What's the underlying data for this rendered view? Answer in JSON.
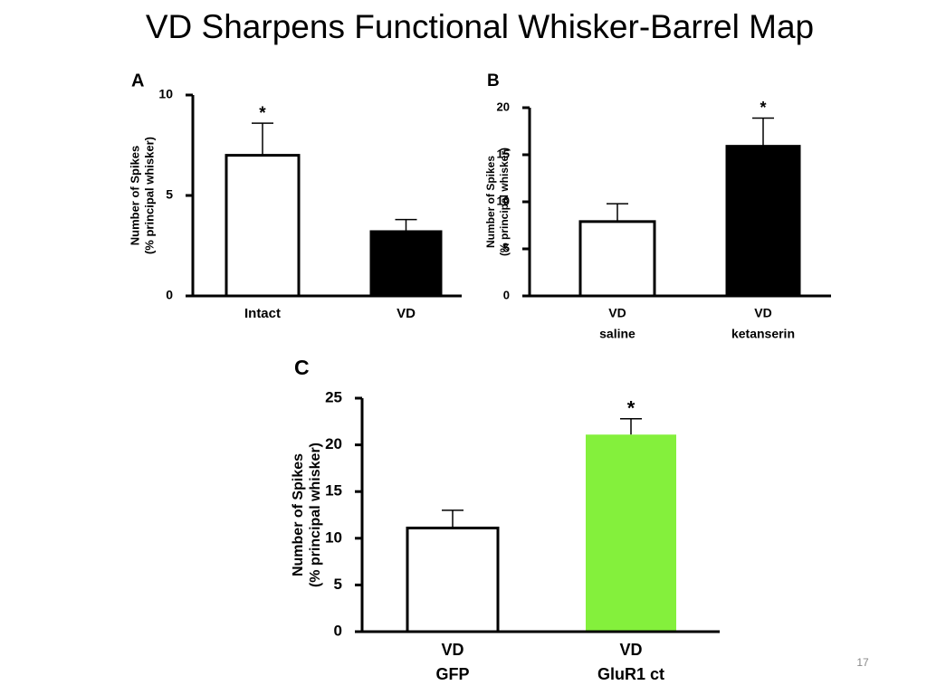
{
  "slide_title": "VD Sharpens Functional Whisker-Barrel Map",
  "page_number": "17",
  "chart_data": [
    {
      "type": "bar",
      "panel": "A",
      "ylabel": [
        "Number of Spikes",
        "(% principal whisker)"
      ],
      "categories": [
        [
          "Intact"
        ],
        [
          "VD"
        ]
      ],
      "values": [
        7.0,
        3.2
      ],
      "errors": [
        1.6,
        0.6
      ],
      "colors": [
        "#ffffff",
        "#000000"
      ],
      "significance": [
        "*",
        null
      ],
      "ylim": [
        0,
        10
      ],
      "yticks": [
        0,
        5,
        10
      ]
    },
    {
      "type": "bar",
      "panel": "B",
      "ylabel": [
        "Number of Spikes",
        "(% principal whisker)"
      ],
      "categories": [
        [
          "VD",
          "saline"
        ],
        [
          "VD",
          "ketanserin"
        ]
      ],
      "values": [
        7.9,
        15.9
      ],
      "errors": [
        1.9,
        3.0
      ],
      "colors": [
        "#ffffff",
        "#000000"
      ],
      "significance": [
        null,
        "*"
      ],
      "ylim": [
        0,
        20
      ],
      "yticks": [
        0,
        5,
        10,
        15,
        20
      ]
    },
    {
      "type": "bar",
      "panel": "C",
      "ylabel": [
        "Number of Spikes",
        "(% principal whisker)"
      ],
      "categories": [
        [
          "VD",
          "GFP"
        ],
        [
          "VD",
          "GluR1 ct"
        ]
      ],
      "values": [
        11.1,
        21.1
      ],
      "errors": [
        1.9,
        1.7
      ],
      "colors": [
        "#ffffff",
        "#84f03c"
      ],
      "significance": [
        null,
        "*"
      ],
      "ylim": [
        0,
        25
      ],
      "yticks": [
        0,
        5,
        10,
        15,
        20,
        25
      ]
    }
  ]
}
